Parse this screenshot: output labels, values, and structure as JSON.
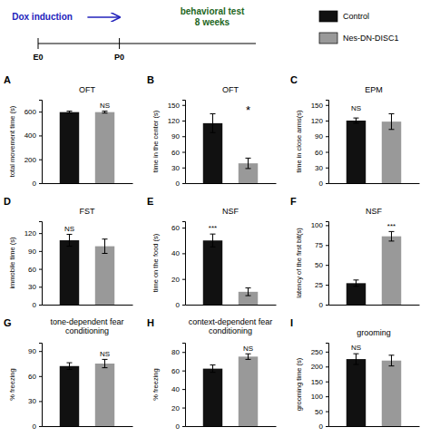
{
  "annotations": [
    {
      "text": "Dox induction",
      "color": "#2222bb"
    },
    {
      "text": "E0"
    },
    {
      "text": "P0"
    },
    {
      "text": "behavioral test\n8 weeks",
      "color": "#226622"
    }
  ],
  "chart_data": [
    {
      "type": "bar",
      "label": "A",
      "title": "OFT",
      "ylabel": "total movement time (s)",
      "categories": [
        null
      ],
      "tick_labels": "y",
      "series": [
        {
          "name": "Control",
          "color": "#111111",
          "values": [
            596
          ],
          "errors": [
            8
          ]
        },
        {
          "name": "Nes-DN-DISC1",
          "color": "#999999",
          "values": [
            596
          ],
          "errors": [
            8
          ]
        }
      ],
      "ylim": [
        0,
        700
      ],
      "yticks": [
        0,
        200,
        400,
        600
      ],
      "annotations": [
        "NS"
      ]
    },
    {
      "type": "bar",
      "label": "B",
      "title": "OFT",
      "ylabel": "time in the center (s)",
      "categories": [
        null
      ],
      "tick_labels": "y",
      "series": [
        {
          "name": "Control",
          "color": "#111111",
          "values": [
            115
          ],
          "errors": [
            18
          ]
        },
        {
          "name": "Nes-DN-DISC1",
          "color": "#999999",
          "values": [
            38
          ],
          "errors": [
            10
          ]
        }
      ],
      "ylim": [
        0,
        160
      ],
      "yticks": [
        0,
        30,
        60,
        90,
        120,
        150
      ],
      "annotations": [
        "*"
      ]
    },
    {
      "type": "bar",
      "label": "C",
      "title": "EPM",
      "ylabel": "time in close arms(s)",
      "categories": [
        null
      ],
      "tick_labels": "y",
      "series": [
        {
          "name": "Control",
          "color": "#111111",
          "values": [
            120
          ],
          "errors": [
            5
          ]
        },
        {
          "name": "Nes-DN-DISC1",
          "color": "#999999",
          "values": [
            118
          ],
          "errors": [
            15
          ]
        }
      ],
      "ylim": [
        0,
        160
      ],
      "yticks": [
        0,
        30,
        60,
        90,
        120,
        150
      ],
      "annotations": [
        "NS"
      ]
    },
    {
      "type": "bar",
      "label": "D",
      "title": "FST",
      "ylabel": "immobile time (s)",
      "categories": [
        null
      ],
      "tick_labels": "y",
      "series": [
        {
          "name": "Control",
          "color": "#111111",
          "values": [
            108
          ],
          "errors": [
            10
          ]
        },
        {
          "name": "Nes-DN-DISC1",
          "color": "#999999",
          "values": [
            98
          ],
          "errors": [
            12
          ]
        }
      ],
      "ylim": [
        0,
        140
      ],
      "yticks": [
        0,
        30,
        60,
        90,
        120
      ],
      "annotations": [
        "NS"
      ]
    },
    {
      "type": "bar",
      "label": "E",
      "title": "NSF",
      "ylabel": "time on the food (s)",
      "categories": [
        null
      ],
      "tick_labels": "y",
      "series": [
        {
          "name": "Control",
          "color": "#111111",
          "values": [
            50
          ],
          "errors": [
            5
          ]
        },
        {
          "name": "Nes-DN-DISC1",
          "color": "#999999",
          "values": [
            10
          ],
          "errors": [
            3
          ]
        }
      ],
      "ylim": [
        0,
        65
      ],
      "yticks": [
        0,
        20,
        40,
        60
      ],
      "annotations": [
        "***"
      ]
    },
    {
      "type": "bar",
      "label": "F",
      "title": "NSF",
      "ylabel": "latency of the first bit(s)",
      "categories": [
        null
      ],
      "tick_labels": "y",
      "series": [
        {
          "name": "Control",
          "color": "#111111",
          "values": [
            27
          ],
          "errors": [
            4
          ]
        },
        {
          "name": "Nes-DN-DISC1",
          "color": "#999999",
          "values": [
            86
          ],
          "errors": [
            6
          ]
        }
      ],
      "ylim": [
        0,
        105
      ],
      "yticks": [
        0,
        25,
        50,
        75,
        100
      ],
      "annotations": [
        "***"
      ]
    },
    {
      "type": "bar",
      "label": "G",
      "title": "tone-dependent fear\nconditioning",
      "ylabel": "% freezing",
      "categories": [
        null
      ],
      "tick_labels": "y",
      "series": [
        {
          "name": "Control",
          "color": "#111111",
          "values": [
            72
          ],
          "errors": [
            4
          ]
        },
        {
          "name": "Nes-DN-DISC1",
          "color": "#999999",
          "values": [
            75
          ],
          "errors": [
            5
          ]
        }
      ],
      "ylim": [
        0,
        100
      ],
      "yticks": [
        0,
        30,
        60,
        90
      ],
      "annotations": [
        "NS"
      ]
    },
    {
      "type": "bar",
      "label": "H",
      "title": "context-dependent fear\nconditioning",
      "ylabel": "% freezing",
      "categories": [
        null
      ],
      "tick_labels": "y",
      "series": [
        {
          "name": "Control",
          "color": "#111111",
          "values": [
            62
          ],
          "errors": [
            4
          ]
        },
        {
          "name": "Nes-DN-DISC1",
          "color": "#999999",
          "values": [
            75
          ],
          "errors": [
            3
          ]
        }
      ],
      "ylim": [
        0,
        90
      ],
      "yticks": [
        0,
        20,
        40,
        60,
        80
      ],
      "annotations": [
        "NS"
      ]
    },
    {
      "type": "bar",
      "label": "I",
      "title": "grooming",
      "ylabel": "grooming time (s)",
      "categories": [
        null
      ],
      "tick_labels": "y",
      "series": [
        {
          "name": "Control",
          "color": "#111111",
          "values": [
            225
          ],
          "errors": [
            18
          ]
        },
        {
          "name": "Nes-DN-DISC1",
          "color": "#999999",
          "values": [
            220
          ],
          "errors": [
            18
          ]
        }
      ],
      "ylim": [
        0,
        280
      ],
      "yticks": [
        0,
        50,
        100,
        150,
        200,
        250
      ],
      "annotations": [
        "NS"
      ]
    }
  ]
}
